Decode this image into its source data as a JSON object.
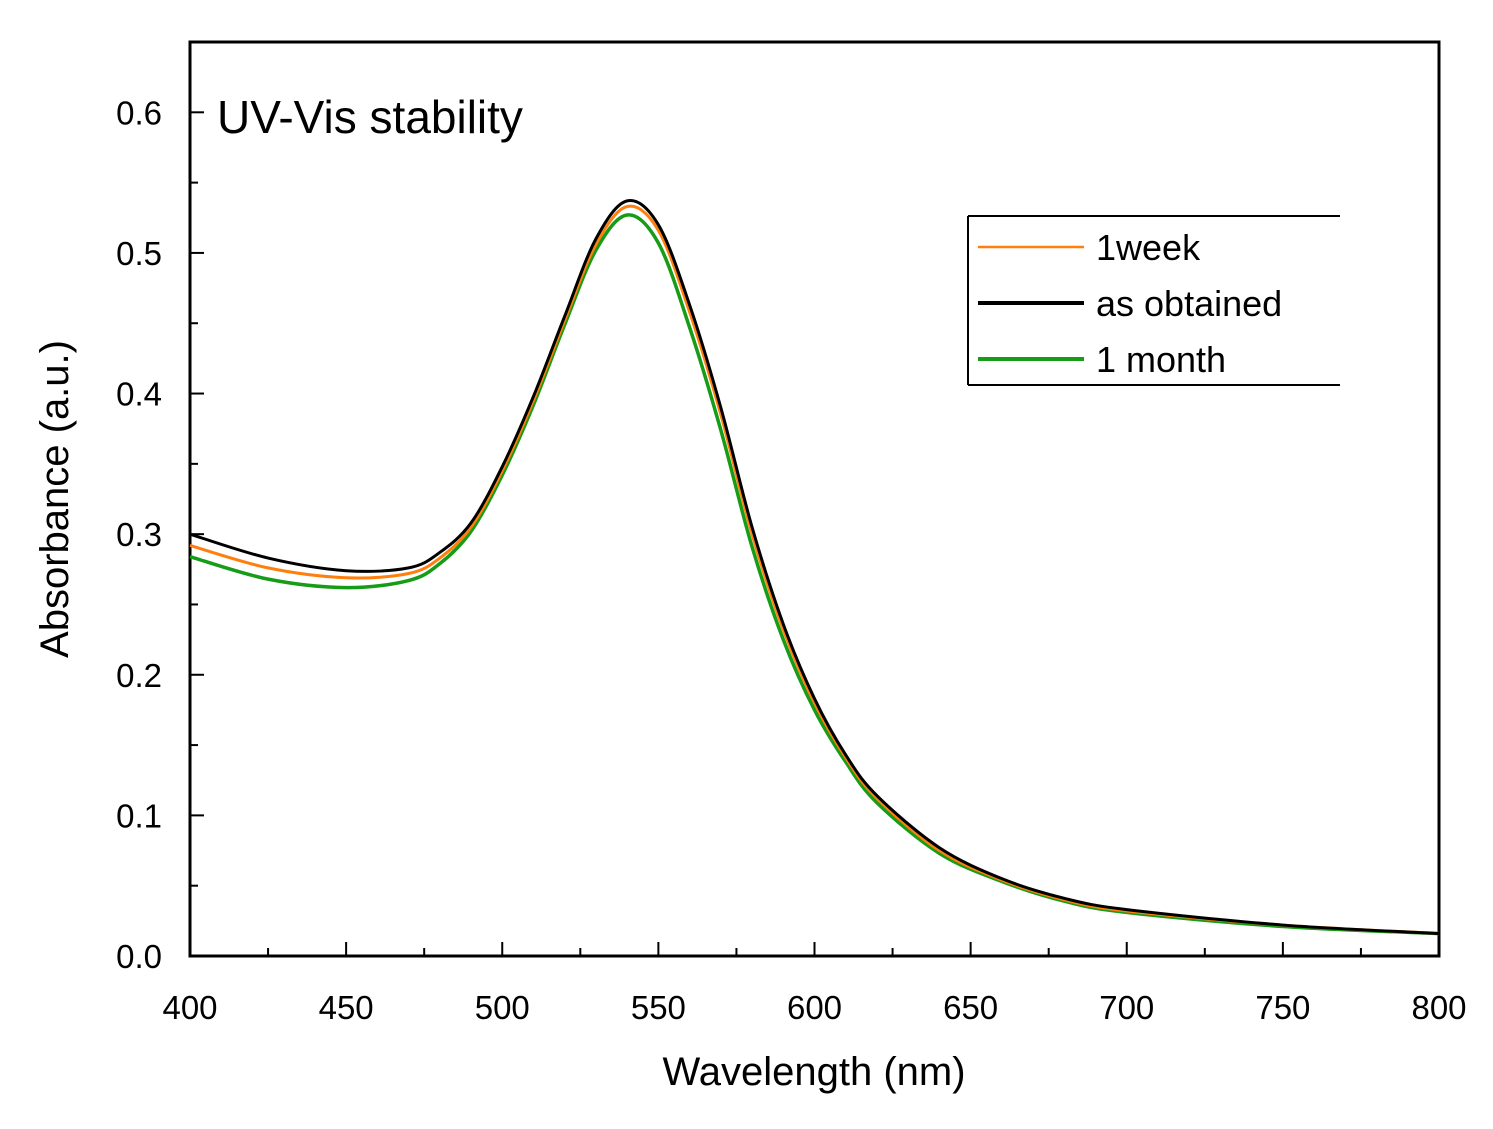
{
  "chart_data": {
    "type": "line",
    "title": "UV-Vis stability",
    "xlabel": "Wavelength (nm)",
    "ylabel": "Absorbance (a.u.)",
    "xlim": [
      400,
      800
    ],
    "ylim": [
      0.0,
      0.65
    ],
    "xticks": [
      400,
      450,
      500,
      550,
      600,
      650,
      700,
      750,
      800
    ],
    "xtick_labels": [
      "400",
      "450",
      "500",
      "550",
      "600",
      "650",
      "700",
      "750",
      "800"
    ],
    "yticks": [
      0.0,
      0.1,
      0.2,
      0.3,
      0.4,
      0.5,
      0.6
    ],
    "ytick_labels": [
      "0.0",
      "0.1",
      "0.2",
      "0.3",
      "0.4",
      "0.5",
      "0.6"
    ],
    "grid": false,
    "legend_position": "top-right",
    "x": [
      400,
      425,
      450,
      470,
      480,
      490,
      500,
      510,
      520,
      530,
      540,
      550,
      560,
      570,
      580,
      590,
      600,
      610,
      620,
      640,
      660,
      680,
      700,
      750,
      800
    ],
    "series": [
      {
        "name": "1week",
        "color": "#ff7f0e",
        "values": [
          0.292,
          0.276,
          0.269,
          0.272,
          0.283,
          0.305,
          0.345,
          0.395,
          0.452,
          0.506,
          0.533,
          0.516,
          0.458,
          0.385,
          0.3,
          0.232,
          0.18,
          0.141,
          0.112,
          0.075,
          0.054,
          0.04,
          0.032,
          0.022,
          0.016
        ]
      },
      {
        "name": "as obtained",
        "color": "#000000",
        "values": [
          0.3,
          0.283,
          0.274,
          0.276,
          0.287,
          0.308,
          0.348,
          0.398,
          0.455,
          0.51,
          0.537,
          0.52,
          0.463,
          0.39,
          0.305,
          0.236,
          0.183,
          0.143,
          0.114,
          0.077,
          0.055,
          0.041,
          0.033,
          0.022,
          0.016
        ]
      },
      {
        "name": "1 month",
        "color": "#169c16",
        "values": [
          0.284,
          0.268,
          0.262,
          0.267,
          0.279,
          0.302,
          0.342,
          0.392,
          0.449,
          0.502,
          0.527,
          0.507,
          0.447,
          0.374,
          0.291,
          0.225,
          0.175,
          0.138,
          0.109,
          0.073,
          0.053,
          0.039,
          0.031,
          0.021,
          0.016
        ]
      }
    ],
    "legend_order": [
      "1week",
      "as obtained",
      "1 month"
    ]
  }
}
